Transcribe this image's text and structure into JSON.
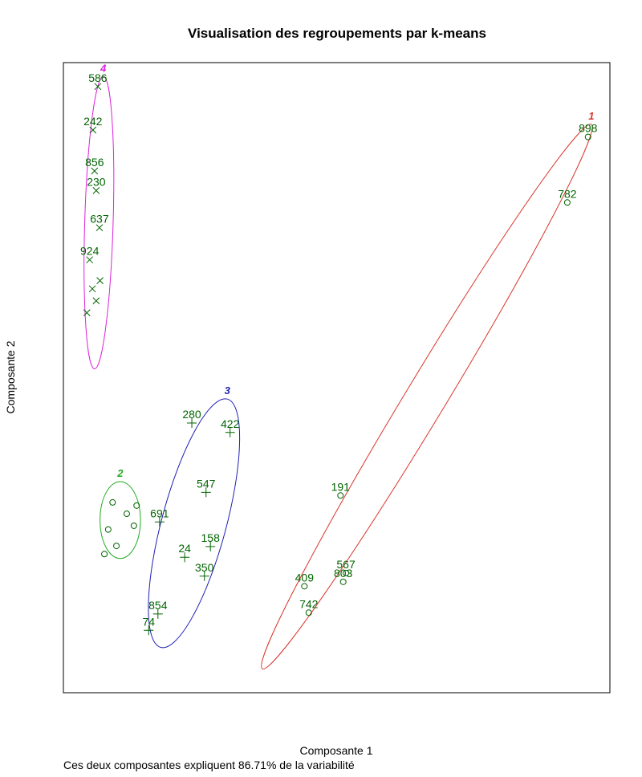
{
  "chart_data": {
    "type": "scatter",
    "title": "Visualisation des regroupements par k-means",
    "xlabel": "Composante 1",
    "ylabel": "Composante 2",
    "subtitle": "Ces deux composantes expliquent 86.71% de la variabilité",
    "xlim": [
      0,
      100
    ],
    "ylim": [
      0,
      100
    ],
    "point_color": "#006400",
    "series": [
      {
        "name": "1",
        "color": "#d9352b",
        "marker": "circle",
        "ellipse": {
          "center": [
            66.5,
            47.0
          ],
          "axis_end": [
            96.6,
            90.2
          ],
          "minor": 3.7
        },
        "x": [
          96.0,
          92.2,
          50.7,
          44.1,
          44.9,
          51.7,
          51.2
        ],
        "y": [
          88.2,
          77.8,
          31.3,
          16.9,
          12.7,
          19.0,
          17.6
        ],
        "labels": [
          "898",
          "782",
          "191",
          "409",
          "742",
          "567",
          "803"
        ]
      },
      {
        "name": "2",
        "color": "#22aa22",
        "marker": "circle",
        "ellipse": {
          "center": [
            10.4,
            27.4
          ],
          "axis_end": [
            10.4,
            33.5
          ],
          "minor": 3.7
        },
        "x": [
          9.0,
          11.6,
          8.2,
          12.9,
          9.7,
          7.5,
          13.4
        ],
        "y": [
          30.2,
          28.4,
          25.9,
          26.5,
          23.3,
          22.0,
          29.7
        ],
        "labels": [
          null,
          null,
          null,
          null,
          null,
          null,
          null
        ]
      },
      {
        "name": "3",
        "color": "#1f1fb4",
        "marker": "plus",
        "ellipse": {
          "center": [
            23.9,
            26.9
          ],
          "axis_end": [
            30.0,
            46.6
          ],
          "minor": 5.9
        },
        "x": [
          23.5,
          30.5,
          26.1,
          17.6,
          26.9,
          25.8,
          17.3,
          15.6,
          22.2
        ],
        "y": [
          42.8,
          41.3,
          31.8,
          27.1,
          23.2,
          18.5,
          12.5,
          9.9,
          21.5
        ],
        "labels": [
          "280",
          "422",
          "547",
          "691",
          "158",
          "350",
          "854",
          "74",
          "24"
        ]
      },
      {
        "name": "4",
        "color": "#dd22dd",
        "marker": "cross",
        "ellipse": {
          "center": [
            6.5,
            74.6
          ],
          "axis_end": [
            7.3,
            97.8
          ],
          "minor": 2.6
        },
        "x": [
          6.3,
          5.4,
          5.7,
          6.0,
          6.6,
          4.8,
          5.3,
          6.0,
          4.3,
          6.7
        ],
        "y": [
          96.2,
          89.3,
          82.8,
          79.7,
          73.8,
          68.7,
          64.1,
          62.2,
          60.3,
          65.4
        ],
        "labels": [
          "586",
          "242",
          "856",
          "230",
          "637",
          "924",
          null,
          null,
          null,
          null
        ]
      }
    ]
  }
}
